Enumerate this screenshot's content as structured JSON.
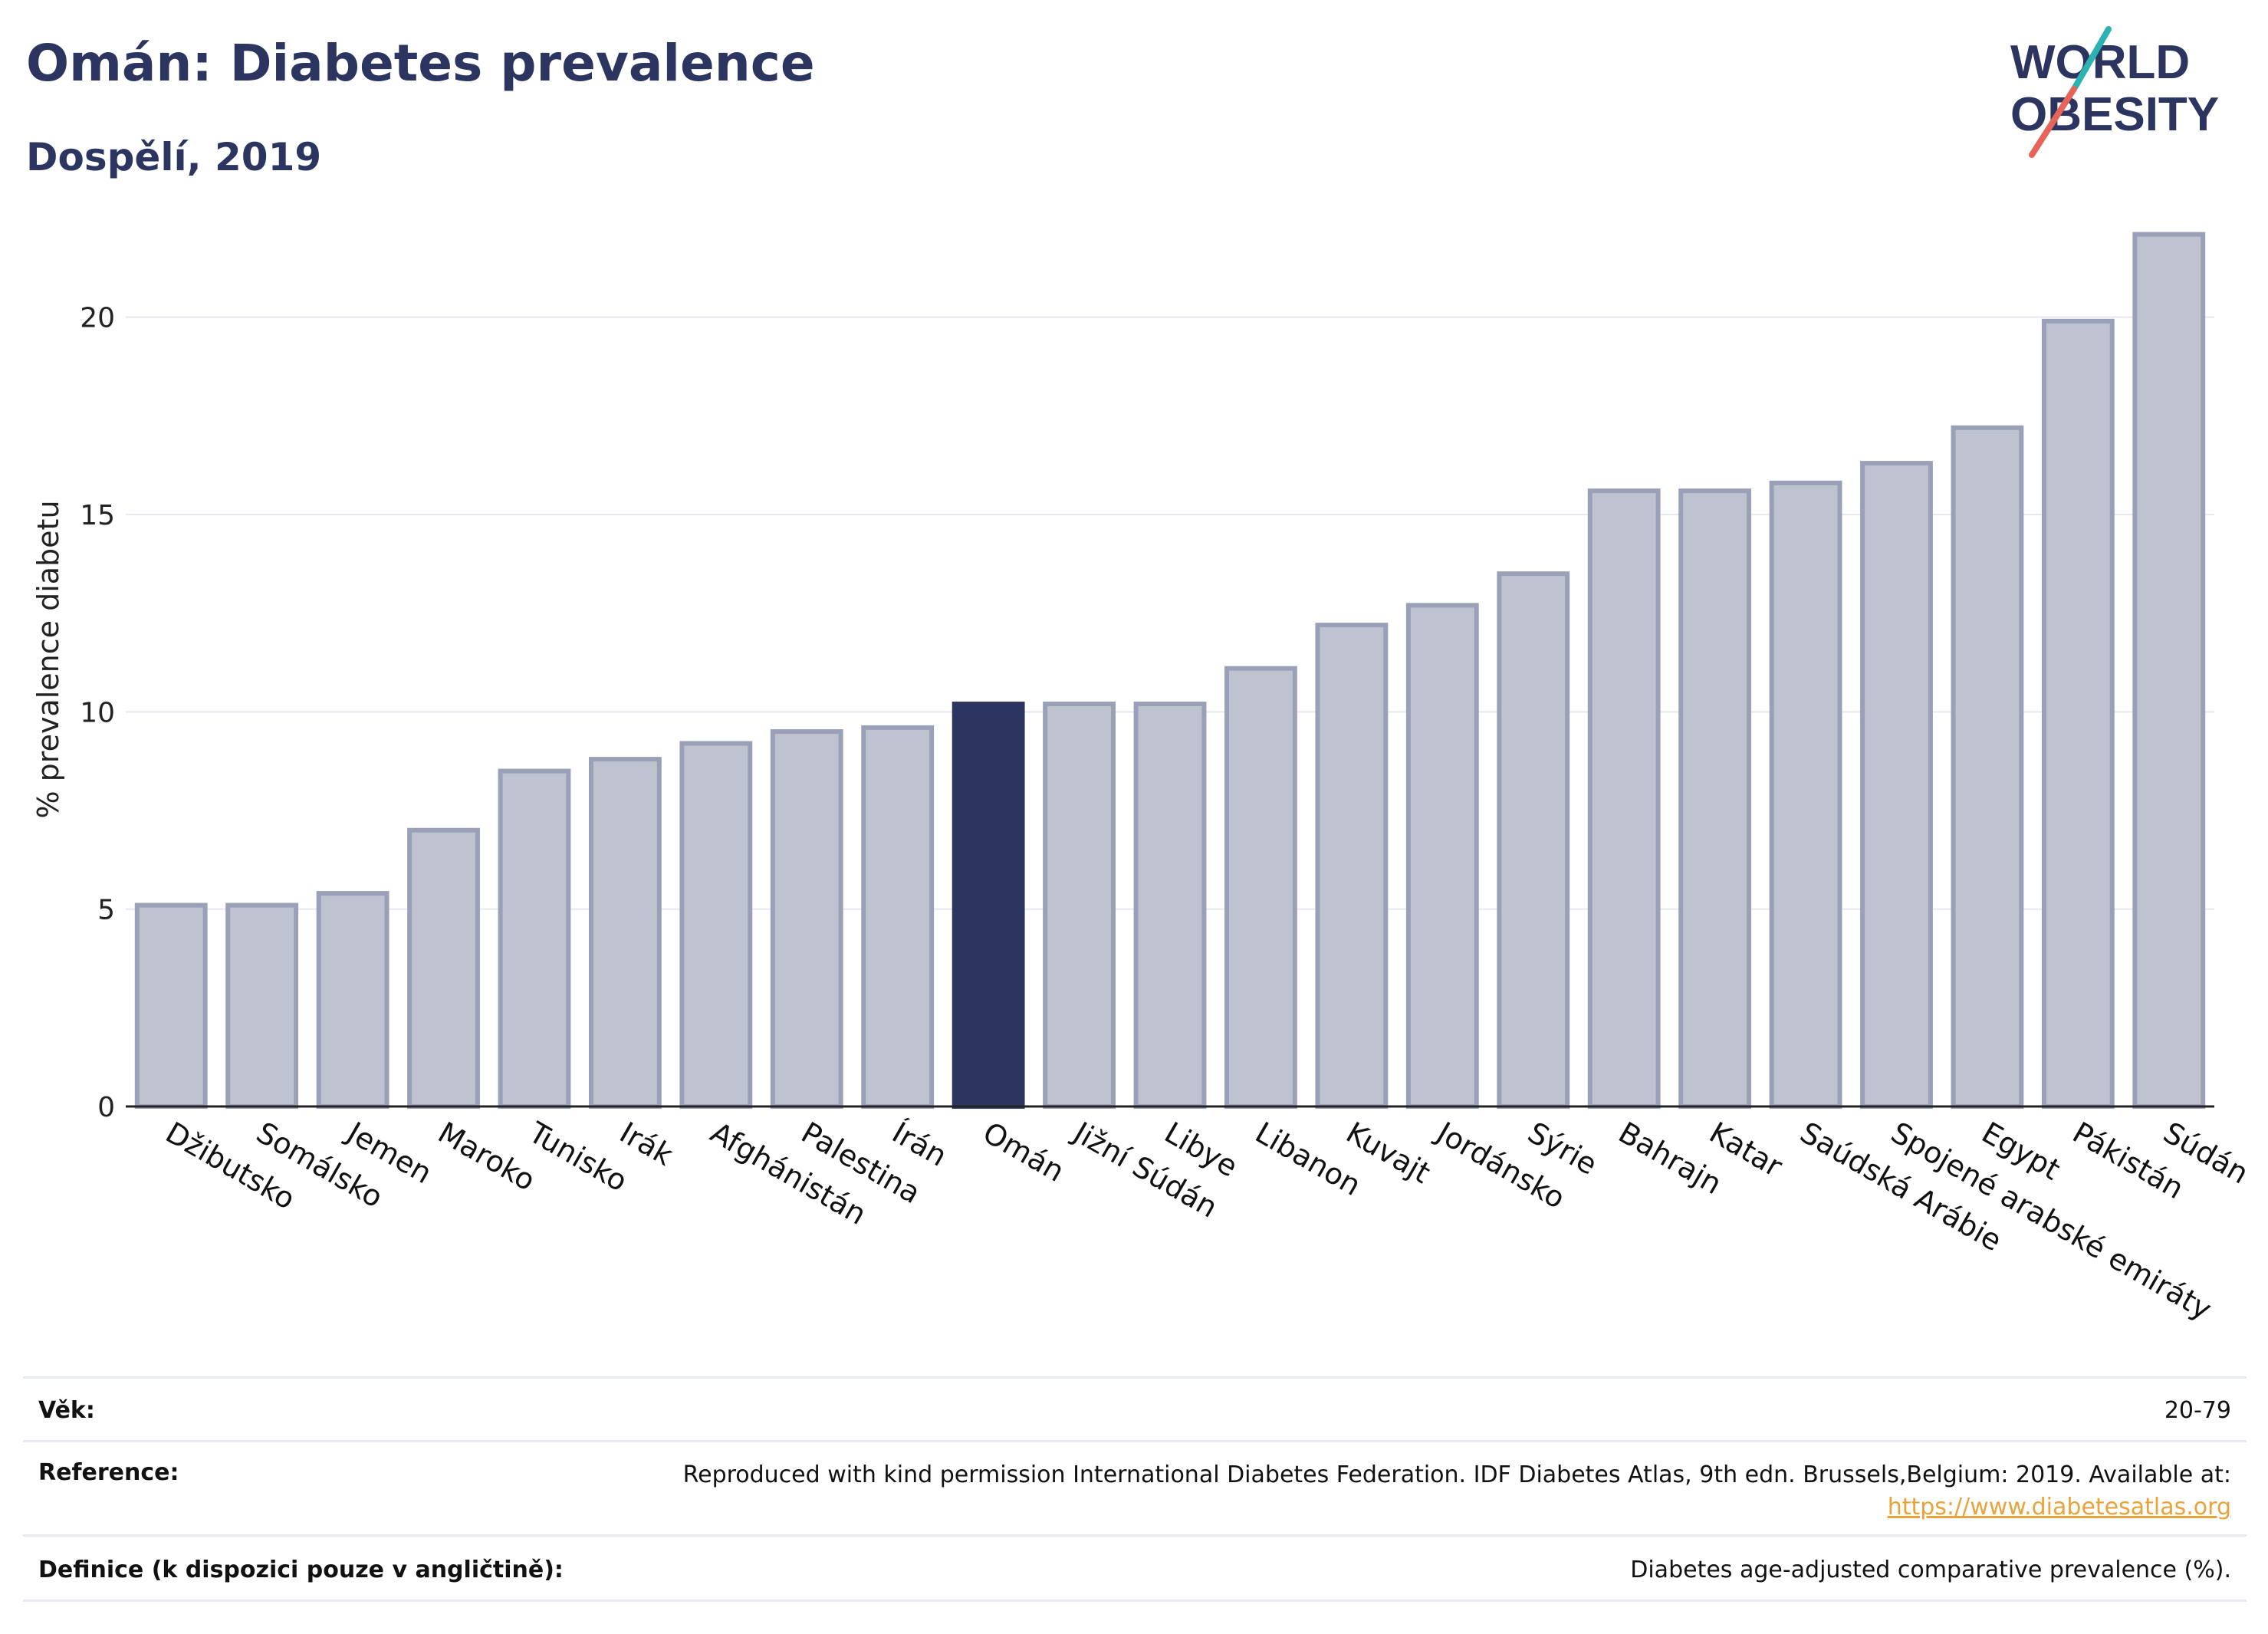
{
  "header": {
    "title": "Omán: Diabetes prevalence",
    "subtitle": "Dospělí, 2019"
  },
  "logo": {
    "line1": "WORLD",
    "line2": "OBESITY",
    "accent_colors": [
      "#2bb3b1",
      "#e8645a"
    ],
    "text_color": "#2b3560"
  },
  "chart_data": {
    "type": "bar",
    "ylabel": "% prevalence diabetu",
    "ylim": [
      0,
      22.5
    ],
    "yticks": [
      0,
      5,
      10,
      15,
      20
    ],
    "grid": true,
    "highlight": "Omán",
    "colors": {
      "bar": "#bfc3d0",
      "bar_edge": "#9aa0b8",
      "highlight": "#2b3560"
    },
    "categories": [
      "Džibutsko",
      "Somálsko",
      "Jemen",
      "Maroko",
      "Tunisko",
      "Irák",
      "Afghánistán",
      "Palestina",
      "Írán",
      "Omán",
      "Jižní Súdán",
      "Libye",
      "Libanon",
      "Kuvajt",
      "Jordánsko",
      "Sýrie",
      "Bahrajn",
      "Katar",
      "Saúdská Arábie",
      "Spojené arabské emiráty",
      "Egypt",
      "Pákistán",
      "Súdán"
    ],
    "values": [
      5.1,
      5.1,
      5.4,
      7.0,
      8.5,
      8.8,
      9.2,
      9.5,
      9.6,
      10.2,
      10.2,
      10.2,
      11.1,
      12.2,
      12.7,
      13.5,
      15.6,
      15.6,
      15.8,
      16.3,
      17.2,
      19.9,
      22.1
    ]
  },
  "meta": {
    "age_label": "Věk:",
    "age_value": "20-79",
    "reference_label": "Reference:",
    "reference_text": "Reproduced with kind permission International Diabetes Federation. IDF Diabetes Atlas, 9th edn. Brussels,Belgium: 2019. Available at:",
    "reference_link": "https://www.diabetesatlas.org",
    "definition_label": "Definice (k dispozici pouze v angličtině):",
    "definition_value": "Diabetes age-adjusted comparative prevalence (%)."
  }
}
